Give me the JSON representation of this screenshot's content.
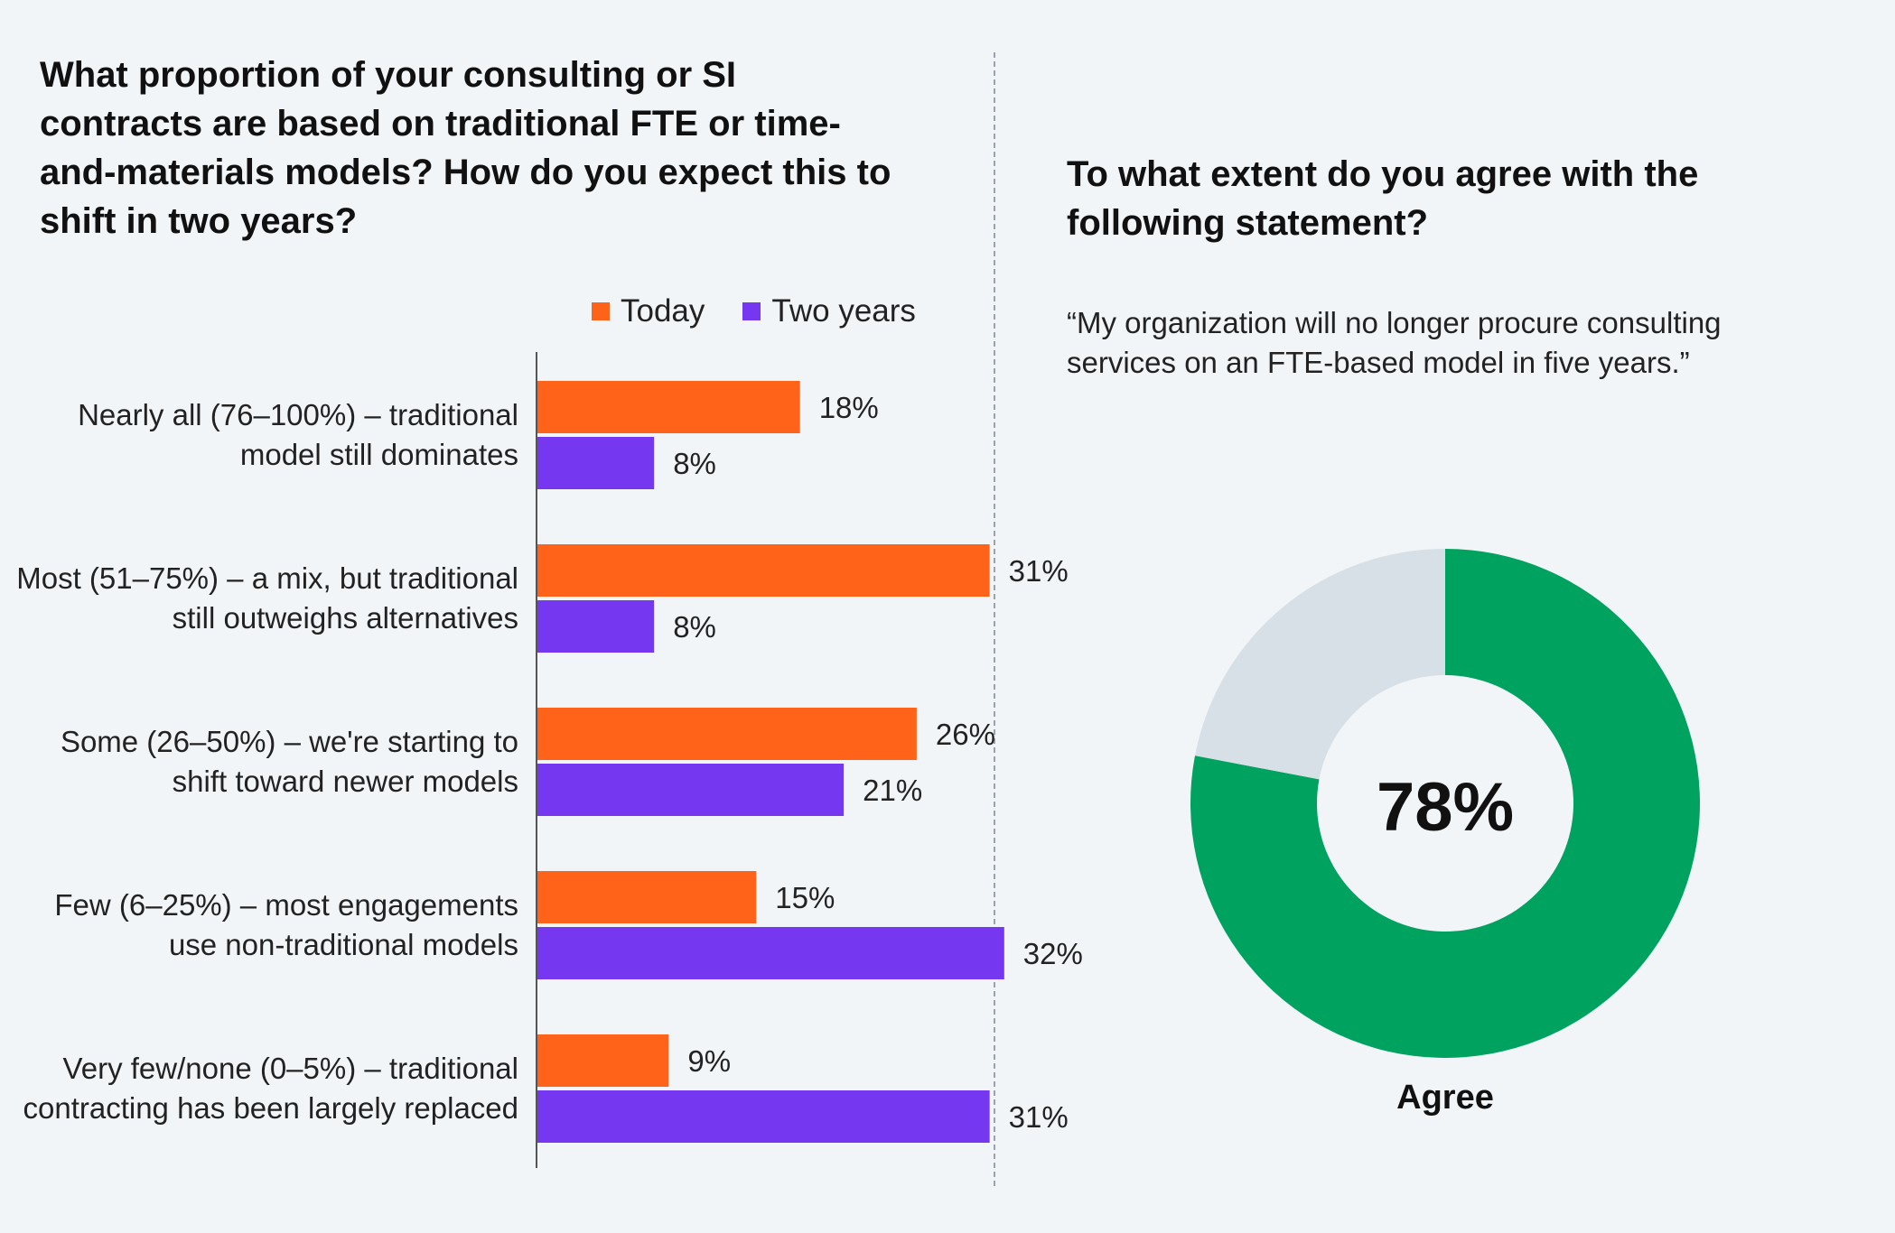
{
  "left": {
    "title": "What proportion of your consulting or SI contracts are based on traditional FTE or time-and-materials models? How do you expect this to shift in two years?"
  },
  "right": {
    "title": "To what extent do you agree with the following statement?",
    "statement": "“My organization will no longer procure consulting services on an FTE-based model in five years.”"
  },
  "legend": {
    "today": "Today",
    "two_years": "Two years"
  },
  "colors": {
    "today": "#ff6319",
    "two_years": "#7537ef",
    "agree": "#00a25f",
    "remainder": "#d6e0e6",
    "axis": "#555555"
  },
  "chart_data": [
    {
      "type": "bar",
      "orientation": "horizontal",
      "title": "What proportion of your consulting or SI contracts are based on traditional FTE or time-and-materials models? How do you expect this to shift in two years?",
      "categories": [
        "Nearly all (76–100%) – traditional model still dominates",
        "Most (51–75%) – a mix, but traditional still outweighs alternatives",
        "Some (26–50%) – we're starting to shift toward newer models",
        "Few (6–25%) – most engagements use non-traditional models",
        "Very few/none (0–5%) – traditional contracting has been largely replaced"
      ],
      "series": [
        {
          "name": "Today",
          "values": [
            18,
            31,
            26,
            15,
            9
          ],
          "labels": [
            "18%",
            "31%",
            "26%",
            "15%",
            "9%"
          ]
        },
        {
          "name": "Two years",
          "values": [
            8,
            8,
            21,
            32,
            31
          ],
          "labels": [
            "8%",
            "8%",
            "21%",
            "32%",
            "31%"
          ]
        }
      ],
      "legend_position": "top-right",
      "grid": false
    },
    {
      "type": "pie",
      "variant": "donut",
      "title": "To what extent do you agree with the following statement?",
      "slices": [
        {
          "name": "Agree",
          "value": 78
        },
        {
          "name": "",
          "value": 22
        }
      ],
      "center_label": "78%",
      "caption": "Agree"
    }
  ]
}
